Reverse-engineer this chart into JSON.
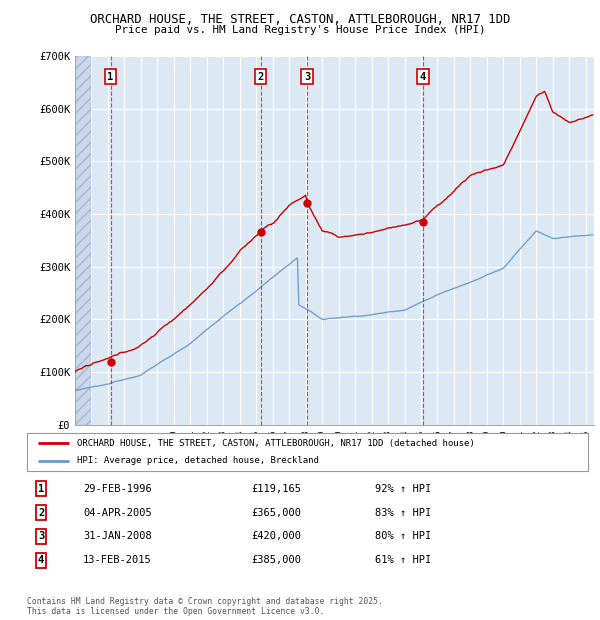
{
  "title1": "ORCHARD HOUSE, THE STREET, CASTON, ATTLEBOROUGH, NR17 1DD",
  "title2": "Price paid vs. HM Land Registry's House Price Index (HPI)",
  "legend_label_red": "ORCHARD HOUSE, THE STREET, CASTON, ATTLEBOROUGH, NR17 1DD (detached house)",
  "legend_label_blue": "HPI: Average price, detached house, Breckland",
  "footer": "Contains HM Land Registry data © Crown copyright and database right 2025.\nThis data is licensed under the Open Government Licence v3.0.",
  "sale_dates": [
    1996.16,
    2005.26,
    2008.08,
    2015.12
  ],
  "sale_prices": [
    119165,
    365000,
    420000,
    385000
  ],
  "sale_labels": [
    "1",
    "2",
    "3",
    "4"
  ],
  "sale_table": [
    [
      "1",
      "29-FEB-1996",
      "£119,165",
      "92% ↑ HPI"
    ],
    [
      "2",
      "04-APR-2005",
      "£365,000",
      "83% ↑ HPI"
    ],
    [
      "3",
      "31-JAN-2008",
      "£420,000",
      "80% ↑ HPI"
    ],
    [
      "4",
      "13-FEB-2015",
      "£385,000",
      "61% ↑ HPI"
    ]
  ],
  "ylim": [
    0,
    700000
  ],
  "xlim_start": 1994.0,
  "xlim_end": 2025.5,
  "yticks": [
    0,
    100000,
    200000,
    300000,
    400000,
    500000,
    600000,
    700000
  ],
  "ytick_labels": [
    "£0",
    "£100K",
    "£200K",
    "£300K",
    "£400K",
    "£500K",
    "£600K",
    "£700K"
  ],
  "red_color": "#cc0000",
  "blue_color": "#6699cc",
  "plot_bg_color": "#dce9f5",
  "hatch_region_end": 1995.0
}
